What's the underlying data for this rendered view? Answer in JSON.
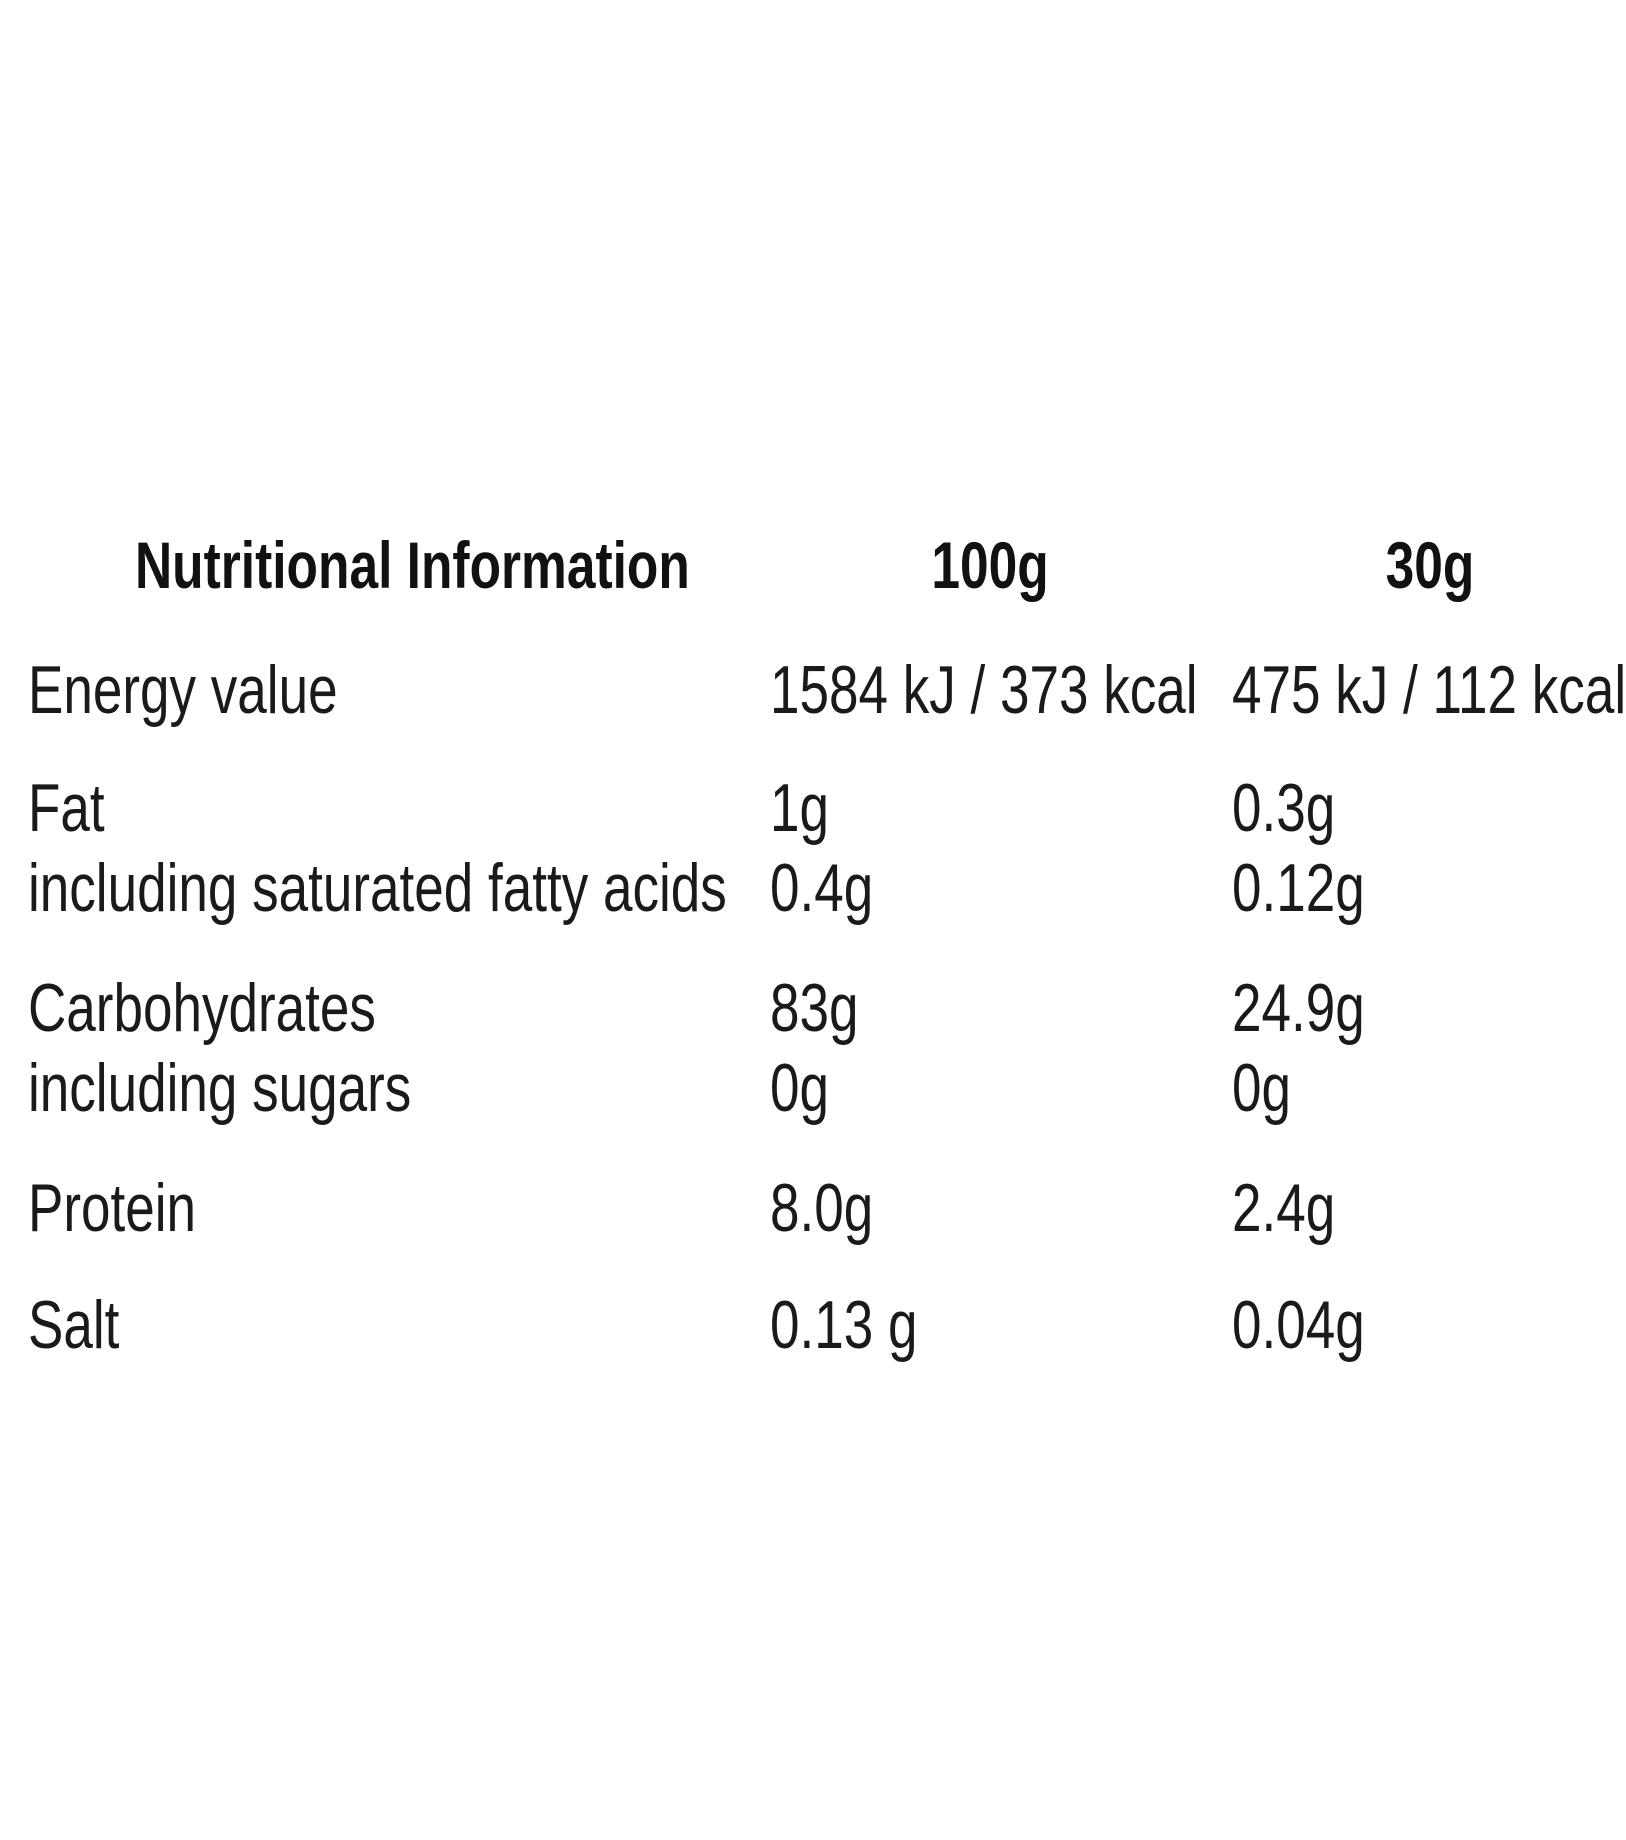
{
  "headers": [
    "Nutritional Information",
    "100g",
    "30g"
  ],
  "rows": [
    {
      "label": "Energy value",
      "per100g": "1584 kJ / 373 kcal",
      "per30g": "475 kJ / 112 kcal"
    },
    {
      "label": "Fat",
      "per100g": "1g",
      "per30g": "0.3g"
    },
    {
      "label": "including saturated fatty acids",
      "per100g": "0.4g",
      "per30g": "0.12g"
    },
    {
      "label": "Carbohydrates",
      "per100g": "83g",
      "per30g": "24.9g"
    },
    {
      "label": "including sugars",
      "per100g": "0g",
      "per30g": "0g"
    },
    {
      "label": "Protein",
      "per100g": "8.0g",
      "per30g": "2.4g"
    },
    {
      "label": "Salt",
      "per100g": "0.13 g",
      "per30g": "0.04g"
    }
  ]
}
